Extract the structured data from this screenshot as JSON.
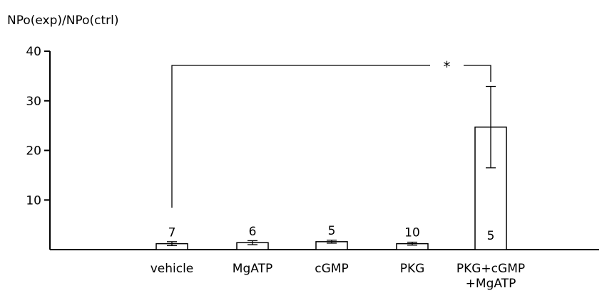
{
  "chart_data": {
    "type": "bar",
    "ylabel": "NPo(exp)/NPo(ctrl)",
    "xlabel": "",
    "title": "",
    "ylim": [
      0,
      40
    ],
    "yticks": [
      10,
      20,
      30,
      40
    ],
    "grid": false,
    "categories": [
      "vehicle",
      "MgATP",
      "cGMP",
      "PKG",
      "PKG+cGMP\n+MgATP"
    ],
    "values": [
      1.2,
      1.4,
      1.6,
      1.2,
      24.7
    ],
    "errors": [
      0.4,
      0.4,
      0.3,
      0.3,
      8.2
    ],
    "n_labels": [
      "7",
      "6",
      "5",
      "10",
      "5"
    ],
    "significance": {
      "from_category": 0,
      "to_category": 4,
      "label": "*"
    },
    "colors": {
      "bar_fill": "#ffffff",
      "bar_stroke": "#000000",
      "axis": "#000000"
    }
  }
}
